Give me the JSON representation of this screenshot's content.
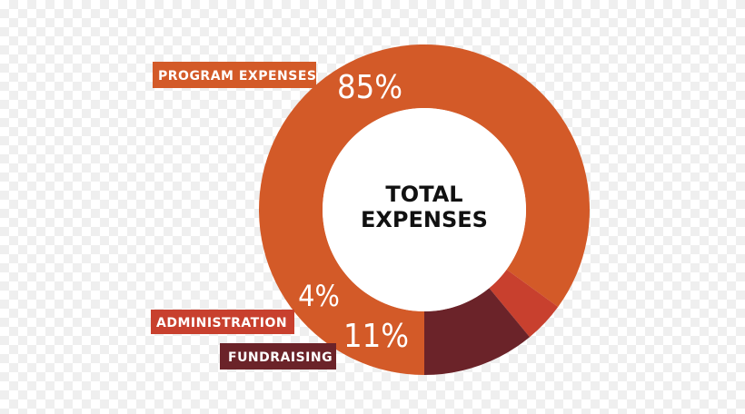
{
  "chart_data": {
    "type": "pie",
    "title": "TOTAL EXPENSES",
    "title_lines": [
      "TOTAL",
      "EXPENSES"
    ],
    "categories": [
      "PROGRAM EXPENSES",
      "ADMINISTRATION",
      "FUNDRAISING"
    ],
    "values": [
      85,
      4,
      11
    ],
    "value_labels": [
      "85%",
      "4%",
      "11%"
    ],
    "colors": [
      "#d35a28",
      "#c8402e",
      "#6b2329"
    ]
  }
}
